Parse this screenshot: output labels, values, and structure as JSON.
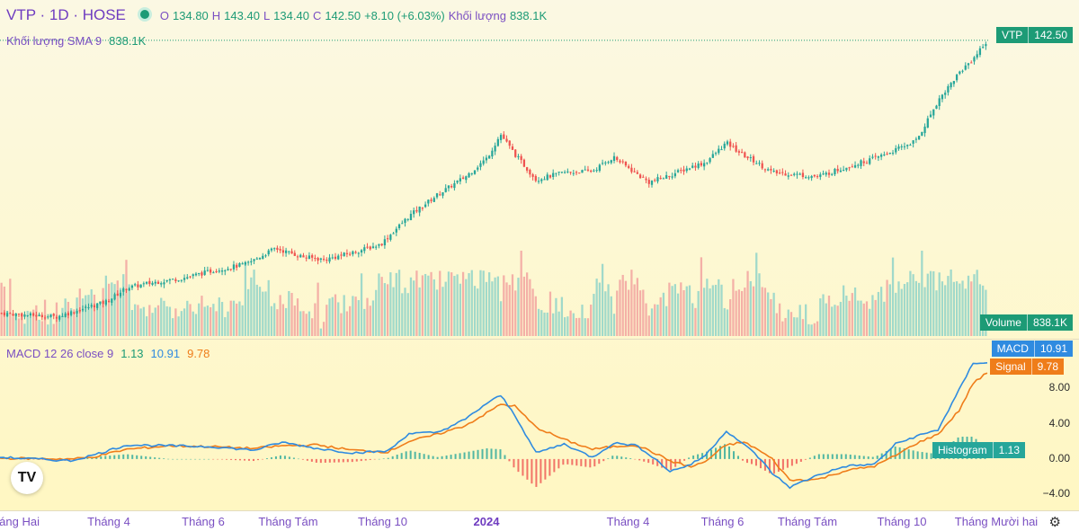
{
  "legend": {
    "symbol": "VTP · 1D · HOSE",
    "o_label": "O",
    "o_value": "134.80",
    "h_label": "H",
    "h_value": "143.40",
    "l_label": "L",
    "l_value": "134.40",
    "c_label": "C",
    "c_value": "142.50",
    "change": "+8.10 (+6.03%)",
    "vol_label": "Khối lượng",
    "vol_value": "838.1K",
    "sma_label": "Khối lượng SMA 9",
    "sma_value": "838.1K",
    "macd_label": "MACD 12 26 close 9",
    "macd_hist": "1.13",
    "macd_macd": "10.91",
    "macd_signal": "9.78"
  },
  "badges": {
    "price_label": "VTP",
    "price_value": "142.50",
    "volume_label": "Volume",
    "volume_value": "838.1K",
    "macd_label": "MACD",
    "macd_value": "10.91",
    "signal_label": "Signal",
    "signal_value": "9.78",
    "hist_label": "Histogram",
    "hist_value": "1.13"
  },
  "logo_text": "TV",
  "colors": {
    "up": "#26a69a",
    "down": "#ef5350",
    "macd": "#2f8be0",
    "signal": "#ef7d1a",
    "bg_top": "#fbf8e3",
    "bg_bottom": "#fff7c2"
  },
  "chart_data": {
    "type": "candlestick",
    "title": "VTP · 1D · HOSE",
    "x_ticks": [
      "Tháng Hai",
      "Tháng 4",
      "Tháng 6",
      "Tháng Tám",
      "Tháng 10",
      "2024",
      "Tháng 4",
      "Tháng 6",
      "Tháng Tám",
      "Tháng 10",
      "Tháng Mười hai"
    ],
    "close_anchors": [
      [
        0,
        45.5
      ],
      [
        0.04,
        44.8
      ],
      [
        0.08,
        44.2
      ],
      [
        0.11,
        46.5
      ],
      [
        0.15,
        49.5
      ],
      [
        0.18,
        54.5
      ],
      [
        0.22,
        56.5
      ],
      [
        0.26,
        58.0
      ],
      [
        0.3,
        60.5
      ],
      [
        0.35,
        63.0
      ],
      [
        0.39,
        68.5
      ],
      [
        0.43,
        65.5
      ],
      [
        0.46,
        64.5
      ],
      [
        0.5,
        67.0
      ],
      [
        0.54,
        70.0
      ],
      [
        0.58,
        80.0
      ],
      [
        0.62,
        87.5
      ],
      [
        0.66,
        94.0
      ],
      [
        0.69,
        100.5
      ],
      [
        0.71,
        109.0
      ],
      [
        0.73,
        102.0
      ],
      [
        0.76,
        93.0
      ],
      [
        0.8,
        95.5
      ],
      [
        0.84,
        96.0
      ],
      [
        0.87,
        101.0
      ],
      [
        0.9,
        95.5
      ],
      [
        0.92,
        92.0
      ],
      [
        0.95,
        94.5
      ],
      [
        0.98,
        97.5
      ],
      [
        1.0,
        99.0
      ],
      [
        1.03,
        106.0
      ],
      [
        1.055,
        101.5
      ],
      [
        1.07,
        99.5
      ],
      [
        1.095,
        95.5
      ],
      [
        1.12,
        95.0
      ],
      [
        1.16,
        94.0
      ],
      [
        1.2,
        97.5
      ],
      [
        1.24,
        100.5
      ],
      [
        1.27,
        103.5
      ],
      [
        1.3,
        107.0
      ],
      [
        1.33,
        121.0
      ],
      [
        1.36,
        131.0
      ],
      [
        1.38,
        136.0
      ],
      [
        1.4,
        142.5
      ]
    ],
    "volume_series": {
      "name": "Khối lượng",
      "last": "838.1K"
    },
    "macd_anchors": [
      [
        0,
        0.2
      ],
      [
        0.1,
        -0.2
      ],
      [
        0.13,
        0.4
      ],
      [
        0.18,
        1.6
      ],
      [
        0.24,
        1.5
      ],
      [
        0.3,
        1.4
      ],
      [
        0.36,
        1.0
      ],
      [
        0.4,
        1.9
      ],
      [
        0.45,
        1.2
      ],
      [
        0.5,
        0.7
      ],
      [
        0.55,
        0.9
      ],
      [
        0.58,
        2.9
      ],
      [
        0.62,
        3.0
      ],
      [
        0.66,
        4.5
      ],
      [
        0.69,
        6.3
      ],
      [
        0.71,
        7.2
      ],
      [
        0.73,
        5.0
      ],
      [
        0.76,
        0.7
      ],
      [
        0.8,
        1.7
      ],
      [
        0.84,
        0.2
      ],
      [
        0.87,
        1.8
      ],
      [
        0.9,
        1.6
      ],
      [
        0.92,
        0.6
      ],
      [
        0.95,
        -1.4
      ],
      [
        0.98,
        -0.6
      ],
      [
        1.0,
        0.4
      ],
      [
        1.03,
        3.2
      ],
      [
        1.055,
        1.6
      ],
      [
        1.07,
        0.7
      ],
      [
        1.095,
        -1.6
      ],
      [
        1.12,
        -3.2
      ],
      [
        1.16,
        -1.8
      ],
      [
        1.2,
        -0.8
      ],
      [
        1.24,
        -0.6
      ],
      [
        1.27,
        1.7
      ],
      [
        1.3,
        2.6
      ],
      [
        1.33,
        3.3
      ],
      [
        1.36,
        7.8
      ],
      [
        1.38,
        10.9
      ],
      [
        1.4,
        10.91
      ]
    ],
    "signal_anchors": [
      [
        0,
        0.1
      ],
      [
        0.1,
        0.0
      ],
      [
        0.13,
        0.2
      ],
      [
        0.18,
        1.1
      ],
      [
        0.24,
        1.5
      ],
      [
        0.3,
        1.4
      ],
      [
        0.36,
        1.2
      ],
      [
        0.4,
        1.5
      ],
      [
        0.45,
        1.6
      ],
      [
        0.5,
        1.0
      ],
      [
        0.55,
        0.8
      ],
      [
        0.58,
        2.0
      ],
      [
        0.62,
        2.8
      ],
      [
        0.66,
        3.8
      ],
      [
        0.69,
        5.2
      ],
      [
        0.71,
        6.2
      ],
      [
        0.73,
        6.0
      ],
      [
        0.76,
        3.6
      ],
      [
        0.8,
        2.2
      ],
      [
        0.84,
        1.1
      ],
      [
        0.87,
        1.4
      ],
      [
        0.9,
        1.6
      ],
      [
        0.92,
        1.0
      ],
      [
        0.95,
        -0.2
      ],
      [
        0.98,
        -0.9
      ],
      [
        1.0,
        -0.3
      ],
      [
        1.03,
        1.6
      ],
      [
        1.055,
        1.9
      ],
      [
        1.07,
        1.3
      ],
      [
        1.095,
        0.0
      ],
      [
        1.12,
        -2.4
      ],
      [
        1.16,
        -2.3
      ],
      [
        1.2,
        -1.3
      ],
      [
        1.24,
        -0.8
      ],
      [
        1.27,
        0.4
      ],
      [
        1.3,
        1.8
      ],
      [
        1.33,
        2.8
      ],
      [
        1.36,
        5.5
      ],
      [
        1.38,
        8.6
      ],
      [
        1.4,
        9.78
      ]
    ],
    "macd_y_ticks": [
      8.0,
      4.0,
      0.0,
      -4.0
    ],
    "macd_ylim": [
      -5,
      11.8
    ],
    "price_ylim": [
      38,
      145
    ],
    "grid": false,
    "legend_position": "top-left"
  }
}
